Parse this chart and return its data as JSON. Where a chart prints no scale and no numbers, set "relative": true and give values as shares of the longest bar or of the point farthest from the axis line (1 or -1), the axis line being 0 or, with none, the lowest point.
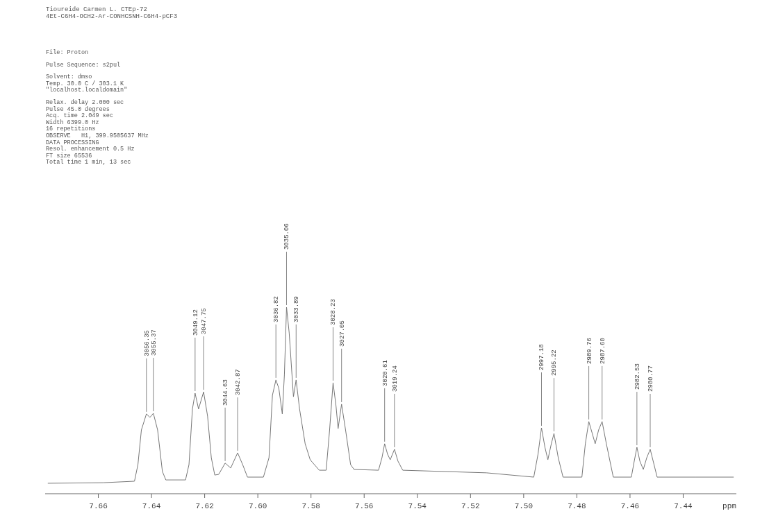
{
  "chart_data": {
    "type": "line",
    "title": "Tioureide Carmen L. CTEp-72",
    "subtitle": "4Et-C6H4-OCH2-Ar-CONHCSNH-C6H4-pCF3",
    "xlabel": "ppm",
    "relative": true,
    "xlim": [
      7.68,
      7.42
    ],
    "xticks": [
      7.66,
      7.64,
      7.62,
      {
        "value": 7.6,
        "label": "7.60"
      },
      7.58,
      7.56,
      7.54,
      7.52,
      {
        "value": 7.5,
        "label": "7.50"
      },
      7.48,
      7.46,
      7.44
    ],
    "grid": false,
    "marker": "none",
    "line_style": "solid",
    "series": [
      {
        "color": "#777777",
        "x": [
          7.679,
          7.6582,
          7.6464,
          7.6451,
          7.6438,
          7.6419,
          7.6406,
          7.6393,
          7.6377,
          7.6359,
          7.6346,
          7.6272,
          7.6259,
          7.6246,
          7.6236,
          7.6223,
          7.6204,
          7.6189,
          7.6175,
          7.6162,
          7.6147,
          7.6123,
          7.6102,
          7.6076,
          7.6057,
          7.6039,
          7.5979,
          7.5958,
          7.5945,
          7.5932,
          7.5921,
          7.5908,
          7.59,
          7.5892,
          7.5882,
          7.5866,
          7.5856,
          7.5843,
          7.5822,
          7.5803,
          7.5769,
          7.5743,
          7.573,
          7.5717,
          7.5706,
          7.5698,
          7.5685,
          7.567,
          7.5651,
          7.5638,
          7.5546,
          7.5533,
          7.5523,
          7.5512,
          7.5502,
          7.5486,
          7.5473,
          7.5455,
          7.514,
          7.4962,
          7.4946,
          7.4933,
          7.492,
          7.4909,
          7.4896,
          7.4886,
          7.487,
          7.4852,
          7.4781,
          7.4768,
          7.4755,
          7.4742,
          7.4731,
          7.4718,
          7.4705,
          7.4689,
          7.4663,
          7.4595,
          7.4584,
          7.4574,
          7.4563,
          7.455,
          7.4537,
          7.4524,
          7.4511,
          7.4498,
          7.4354,
          7.421
        ],
        "values": [
          0.056,
          0.059,
          0.067,
          0.156,
          0.342,
          0.428,
          0.409,
          0.431,
          0.342,
          0.119,
          0.074,
          0.074,
          0.156,
          0.454,
          0.539,
          0.454,
          0.546,
          0.416,
          0.193,
          0.1,
          0.104,
          0.164,
          0.138,
          0.219,
          0.156,
          0.089,
          0.089,
          0.193,
          0.528,
          0.61,
          0.565,
          0.428,
          0.639,
          1,
          0.862,
          0.52,
          0.61,
          0.454,
          0.268,
          0.182,
          0.126,
          0.126,
          0.342,
          0.595,
          0.472,
          0.349,
          0.48,
          0.342,
          0.156,
          0.13,
          0.126,
          0.193,
          0.268,
          0.212,
          0.182,
          0.238,
          0.175,
          0.126,
          0.112,
          0.089,
          0.212,
          0.353,
          0.249,
          0.182,
          0.268,
          0.323,
          0.193,
          0.089,
          0.089,
          0.268,
          0.387,
          0.323,
          0.268,
          0.342,
          0.387,
          0.268,
          0.089,
          0.089,
          0.175,
          0.249,
          0.175,
          0.13,
          0.193,
          0.238,
          0.164,
          0.089,
          0.089,
          0.089
        ]
      }
    ],
    "annotations": [
      {
        "text": "3056.35",
        "x": 7.6419,
        "y": 0.428
      },
      {
        "text": "3055.37",
        "x": 7.6393,
        "y": 0.431
      },
      {
        "text": "3049.12",
        "x": 7.6236,
        "y": 0.539
      },
      {
        "text": "3047.75",
        "x": 7.6204,
        "y": 0.546
      },
      {
        "text": "3044.63",
        "x": 7.6123,
        "y": 0.164
      },
      {
        "text": "3042.87",
        "x": 7.6076,
        "y": 0.219
      },
      {
        "text": "3036.82",
        "x": 7.5932,
        "y": 0.61
      },
      {
        "text": "3035.06",
        "x": 7.5892,
        "y": 1
      },
      {
        "text": "3033.89",
        "x": 7.5856,
        "y": 0.61
      },
      {
        "text": "3028.23",
        "x": 7.5717,
        "y": 0.595
      },
      {
        "text": "3027.05",
        "x": 7.5685,
        "y": 0.48
      },
      {
        "text": "3020.61",
        "x": 7.5523,
        "y": 0.268
      },
      {
        "text": "3019.24",
        "x": 7.5486,
        "y": 0.238
      },
      {
        "text": "2997.18",
        "x": 7.4933,
        "y": 0.353
      },
      {
        "text": "2995.22",
        "x": 7.4886,
        "y": 0.323
      },
      {
        "text": "2989.76",
        "x": 7.4755,
        "y": 0.387
      },
      {
        "text": "2987.60",
        "x": 7.4705,
        "y": 0.387
      },
      {
        "text": "2982.53",
        "x": 7.4574,
        "y": 0.249
      },
      {
        "text": "2980.77",
        "x": 7.4524,
        "y": 0.238
      },
      "File: Proton",
      "Pulse Sequence: s2pul",
      "Solvent: dmso",
      "Temp. 30.0 C / 303.1 K",
      "\"localhost.localdomain\"",
      "Relax. delay 2.000 sec",
      "Pulse 45.0 degrees",
      "Acq. time 2.049 sec",
      "Width 6399.0 Hz",
      "16 repetitions",
      "OBSERVE   H1, 399.9505637 MHz",
      "DATA PROCESSING",
      "Resol. enhancement 0.5 Hz",
      "FT size 65536",
      "Total time 1 min, 13 sec"
    ]
  }
}
